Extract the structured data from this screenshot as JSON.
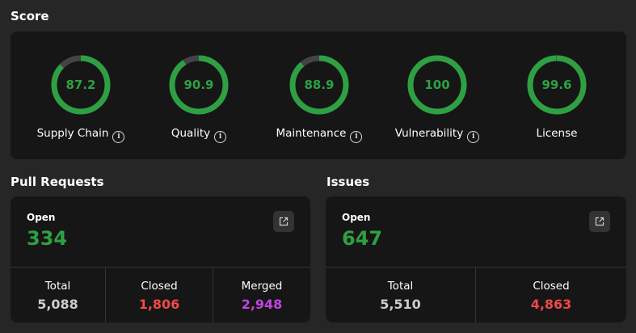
{
  "score": {
    "title": "Score",
    "gauges": [
      {
        "value": "87.2",
        "fraction": 0.872,
        "label": "Supply Chain",
        "info": true
      },
      {
        "value": "90.9",
        "fraction": 0.909,
        "label": "Quality",
        "info": true
      },
      {
        "value": "88.9",
        "fraction": 0.889,
        "label": "Maintenance",
        "info": true
      },
      {
        "value": "100",
        "fraction": 1.0,
        "label": "Vulnerability",
        "info": true
      },
      {
        "value": "99.6",
        "fraction": 0.996,
        "label": "License",
        "info": false
      }
    ]
  },
  "pull_requests": {
    "title": "Pull Requests",
    "open_label": "Open",
    "open_value": "334",
    "stats": [
      {
        "label": "Total",
        "value": "5,088",
        "color": "#cccccc"
      },
      {
        "label": "Closed",
        "value": "1,806",
        "color": "#f04848"
      },
      {
        "label": "Merged",
        "value": "2,948",
        "color": "#c045e0"
      }
    ]
  },
  "issues": {
    "title": "Issues",
    "open_label": "Open",
    "open_value": "647",
    "stats": [
      {
        "label": "Total",
        "value": "5,510",
        "color": "#cccccc"
      },
      {
        "label": "Closed",
        "value": "4,863",
        "color": "#f04848"
      }
    ]
  },
  "colors": {
    "gauge_fill": "#2ea043",
    "gauge_track": "#444444",
    "open_value": "#2ea043"
  },
  "icons": {
    "info": "info-icon",
    "external": "external-link-icon"
  }
}
